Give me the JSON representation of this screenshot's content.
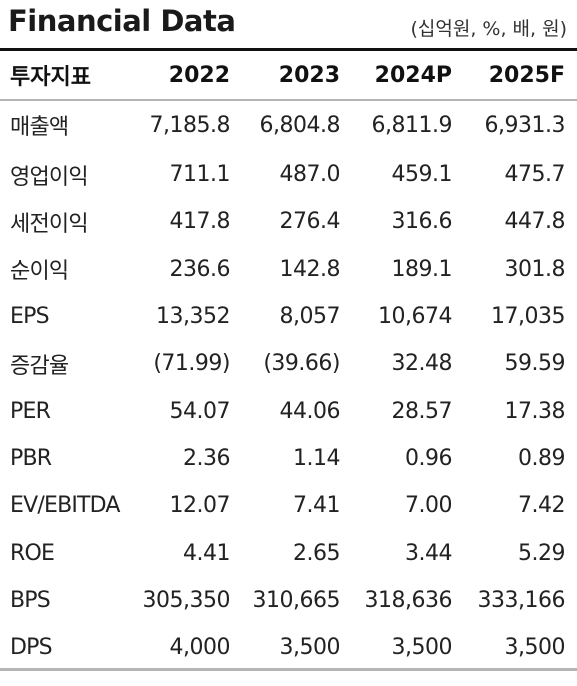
{
  "header": {
    "title": "Financial Data",
    "unit": "(십억원, %, 배, 원)"
  },
  "table": {
    "columns": [
      "투자지표",
      "2022",
      "2023",
      "2024P",
      "2025F"
    ],
    "rows": [
      {
        "label": "매출액",
        "values": [
          "7,185.8",
          "6,804.8",
          "6,811.9",
          "6,931.3"
        ]
      },
      {
        "label": "영업이익",
        "values": [
          "711.1",
          "487.0",
          "459.1",
          "475.7"
        ]
      },
      {
        "label": "세전이익",
        "values": [
          "417.8",
          "276.4",
          "316.6",
          "447.8"
        ]
      },
      {
        "label": "순이익",
        "values": [
          "236.6",
          "142.8",
          "189.1",
          "301.8"
        ]
      },
      {
        "label": "EPS",
        "values": [
          "13,352",
          "8,057",
          "10,674",
          "17,035"
        ]
      },
      {
        "label": "증감율",
        "values": [
          "(71.99)",
          "(39.66)",
          "32.48",
          "59.59"
        ]
      },
      {
        "label": "PER",
        "values": [
          "54.07",
          "44.06",
          "28.57",
          "17.38"
        ]
      },
      {
        "label": "PBR",
        "values": [
          "2.36",
          "1.14",
          "0.96",
          "0.89"
        ]
      },
      {
        "label": "EV/EBITDA",
        "values": [
          "12.07",
          "7.41",
          "7.00",
          "7.42"
        ]
      },
      {
        "label": "ROE",
        "values": [
          "4.41",
          "2.65",
          "3.44",
          "5.29"
        ]
      },
      {
        "label": "BPS",
        "values": [
          "305,350",
          "310,665",
          "318,636",
          "333,166"
        ]
      },
      {
        "label": "DPS",
        "values": [
          "4,000",
          "3,500",
          "3,500",
          "3,500"
        ]
      }
    ]
  }
}
